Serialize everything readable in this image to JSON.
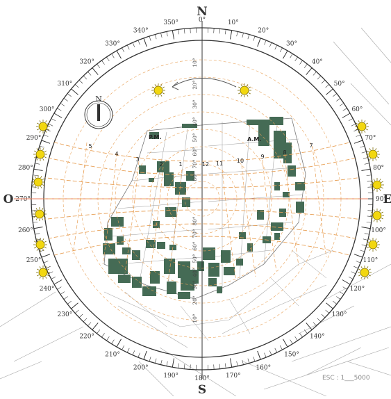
{
  "cardinals": {
    "north": "N",
    "south": "S",
    "west": "O",
    "east": "E"
  },
  "compass_label": "N",
  "degree_labels": [
    "0°",
    "10°",
    "20°",
    "30°",
    "40°",
    "50°",
    "60°",
    "70°",
    "80°",
    "90°",
    "100°",
    "110°",
    "120°",
    "130°",
    "140°",
    "150°",
    "160°",
    "170°",
    "180°",
    "190°",
    "200°",
    "210°",
    "220°",
    "230°",
    "240°",
    "250°",
    "260°",
    "270°",
    "280°",
    "290°",
    "300°",
    "310°",
    "320°",
    "330°",
    "340°",
    "350°"
  ],
  "altitude_labels": [
    "10°",
    "20°",
    "30°",
    "40°",
    "50°",
    "60°",
    "70°",
    "80°",
    "80°",
    "70°",
    "60°",
    "50°",
    "40°",
    "30°",
    "20°",
    "10°"
  ],
  "hour_labels": [
    "5",
    "4",
    "3",
    "2",
    "1",
    "12",
    "11",
    "10",
    "9",
    "8",
    "7"
  ],
  "labels": {
    "pm": "P.M.",
    "am": "A.M."
  },
  "scale": {
    "text": "ESC : 1___5000"
  },
  "colors": {
    "building": "#456b55",
    "sun": "#f2d70f",
    "sun_path": "#e8a158",
    "axis": "#e87a5a",
    "ring": "#333333"
  }
}
